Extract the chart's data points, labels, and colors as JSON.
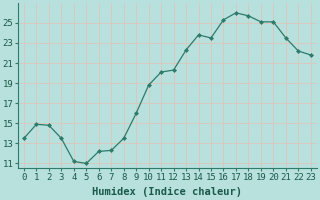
{
  "x": [
    0,
    1,
    2,
    3,
    4,
    5,
    6,
    7,
    8,
    9,
    10,
    11,
    12,
    13,
    14,
    15,
    16,
    17,
    18,
    19,
    20,
    21,
    22,
    23
  ],
  "y": [
    13.5,
    14.9,
    14.8,
    13.5,
    11.2,
    11.0,
    12.2,
    12.3,
    13.5,
    16.0,
    18.8,
    20.1,
    20.3,
    22.3,
    23.8,
    23.5,
    25.3,
    26.0,
    25.7,
    25.1,
    25.1,
    23.5,
    22.2,
    21.8
  ],
  "line_color": "#2d7b6b",
  "marker_color": "#2d7b6b",
  "bg_color": "#b8e0dc",
  "grid_major_color": "#d8c8c0",
  "grid_minor_color": "#cce0dc",
  "plot_bg": "#b8e0dc",
  "xlabel": "Humidex (Indice chaleur)",
  "ylabel_ticks": [
    11,
    13,
    15,
    17,
    19,
    21,
    23,
    25
  ],
  "xtick_labels": [
    "0",
    "1",
    "2",
    "3",
    "4",
    "5",
    "6",
    "7",
    "8",
    "9",
    "10",
    "11",
    "12",
    "13",
    "14",
    "15",
    "16",
    "17",
    "18",
    "19",
    "20",
    "21",
    "22",
    "23"
  ],
  "ylim": [
    10.5,
    27.0
  ],
  "xlim": [
    -0.5,
    23.5
  ],
  "label_fontsize": 7.5,
  "tick_fontsize": 6.5
}
